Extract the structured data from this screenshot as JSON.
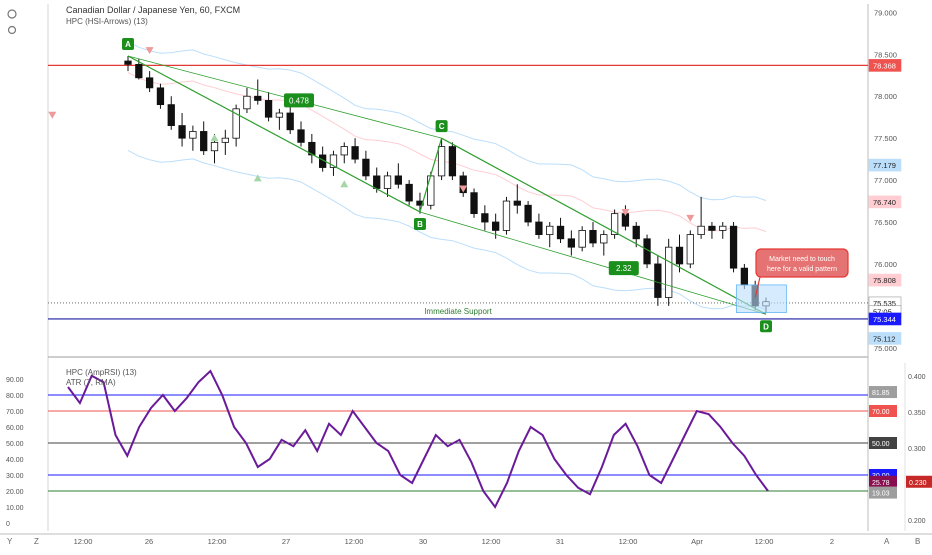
{
  "header": {
    "symbol_line": "Canadian Dollar / Japanese Yen, 60, FXCM",
    "indicator": "HPC (HSI-Arrows) (13)"
  },
  "left_toolbar": {
    "icons": [
      "settings-icon",
      "zoom-icon"
    ]
  },
  "bottom_bar": {
    "y_label": "Y",
    "z_label": "Z",
    "a_label": "A",
    "b_label": "B"
  },
  "chart_data": [
    {
      "type": "candlestick",
      "pane": "price",
      "ylim": [
        74.95,
        79.1
      ],
      "yticks": [
        "79.000",
        "78.500",
        "78.000",
        "77.500",
        "77.000",
        "76.500",
        "76.000",
        "75.500",
        "75.000"
      ],
      "xticks": [
        "12:00",
        "26",
        "12:00",
        "27",
        "12:00",
        "30",
        "12:00",
        "31",
        "12:00",
        "Apr",
        "12:00",
        "2"
      ],
      "price_tags": [
        {
          "value": "78.368",
          "price": 78.368,
          "color": "#ef5350"
        },
        {
          "value": "77.179",
          "price": 77.179,
          "color": "#bbdefb"
        },
        {
          "value": "76.740",
          "price": 76.74,
          "color": "#ffcdd2"
        },
        {
          "value": "75.808",
          "price": 75.808,
          "color": "#ffcdd2"
        },
        {
          "value": "75.535",
          "price": 75.535,
          "color": "#ffffff"
        },
        {
          "value": "57:05",
          "price": 75.43,
          "color": "#ffffff"
        },
        {
          "value": "75.344",
          "price": 75.344,
          "color": "#1a1aff"
        },
        {
          "value": "75.112",
          "price": 75.112,
          "color": "#bbdefb"
        }
      ],
      "horizontal_levels": [
        {
          "price": 78.368,
          "color": "#e53935",
          "label": ""
        },
        {
          "price": 75.344,
          "color": "#1a1aa0",
          "label": "Immediate Support"
        }
      ],
      "pattern_points": [
        {
          "label": "A",
          "x": 0,
          "y": 78.48
        },
        {
          "label": "B",
          "x": 27,
          "y": 76.62
        },
        {
          "label": "C",
          "x": 29,
          "y": 77.5
        },
        {
          "label": "D",
          "x": 59,
          "y": 75.4
        }
      ],
      "ratios": [
        "0.478",
        "2.32"
      ],
      "callout": "Market need to touch here for a valid pattern",
      "candles": [
        [
          78.42,
          78.48,
          78.3,
          78.38
        ],
        [
          78.38,
          78.45,
          78.2,
          78.22
        ],
        [
          78.22,
          78.3,
          78.05,
          78.1
        ],
        [
          78.1,
          78.15,
          77.85,
          77.9
        ],
        [
          77.9,
          78.0,
          77.6,
          77.65
        ],
        [
          77.65,
          77.8,
          77.4,
          77.5
        ],
        [
          77.5,
          77.65,
          77.35,
          77.58
        ],
        [
          77.58,
          77.7,
          77.3,
          77.35
        ],
        [
          77.35,
          77.55,
          77.2,
          77.45
        ],
        [
          77.45,
          77.6,
          77.3,
          77.5
        ],
        [
          77.5,
          77.9,
          77.4,
          77.85
        ],
        [
          77.85,
          78.1,
          77.8,
          78.0
        ],
        [
          78.0,
          78.2,
          77.9,
          77.95
        ],
        [
          77.95,
          78.05,
          77.7,
          77.75
        ],
        [
          77.75,
          77.85,
          77.6,
          77.8
        ],
        [
          77.8,
          77.9,
          77.55,
          77.6
        ],
        [
          77.6,
          77.7,
          77.4,
          77.45
        ],
        [
          77.45,
          77.55,
          77.2,
          77.3
        ],
        [
          77.3,
          77.4,
          77.1,
          77.15
        ],
        [
          77.15,
          77.35,
          77.05,
          77.3
        ],
        [
          77.3,
          77.45,
          77.2,
          77.4
        ],
        [
          77.4,
          77.5,
          77.2,
          77.25
        ],
        [
          77.25,
          77.35,
          77.0,
          77.05
        ],
        [
          77.05,
          77.15,
          76.85,
          76.9
        ],
        [
          76.9,
          77.1,
          76.8,
          77.05
        ],
        [
          77.05,
          77.2,
          76.9,
          76.95
        ],
        [
          76.95,
          77.0,
          76.7,
          76.75
        ],
        [
          76.75,
          76.85,
          76.6,
          76.7
        ],
        [
          76.7,
          77.1,
          76.65,
          77.05
        ],
        [
          77.05,
          77.5,
          77.0,
          77.4
        ],
        [
          77.4,
          77.45,
          77.0,
          77.05
        ],
        [
          77.05,
          77.1,
          76.8,
          76.85
        ],
        [
          76.85,
          76.9,
          76.55,
          76.6
        ],
        [
          76.6,
          76.7,
          76.4,
          76.5
        ],
        [
          76.5,
          76.6,
          76.3,
          76.4
        ],
        [
          76.4,
          76.8,
          76.35,
          76.75
        ],
        [
          76.75,
          76.95,
          76.6,
          76.7
        ],
        [
          76.7,
          76.75,
          76.45,
          76.5
        ],
        [
          76.5,
          76.6,
          76.3,
          76.35
        ],
        [
          76.35,
          76.5,
          76.2,
          76.45
        ],
        [
          76.45,
          76.55,
          76.25,
          76.3
        ],
        [
          76.3,
          76.4,
          76.1,
          76.2
        ],
        [
          76.2,
          76.45,
          76.15,
          76.4
        ],
        [
          76.4,
          76.5,
          76.2,
          76.25
        ],
        [
          76.25,
          76.4,
          76.1,
          76.35
        ],
        [
          76.35,
          76.65,
          76.3,
          76.6
        ],
        [
          76.6,
          76.7,
          76.4,
          76.45
        ],
        [
          76.45,
          76.5,
          76.2,
          76.3
        ],
        [
          76.3,
          76.35,
          75.95,
          76.0
        ],
        [
          76.0,
          76.1,
          75.5,
          75.6
        ],
        [
          75.6,
          76.3,
          75.5,
          76.2
        ],
        [
          76.2,
          76.35,
          75.9,
          76.0
        ],
        [
          76.0,
          76.4,
          75.95,
          76.35
        ],
        [
          76.35,
          76.8,
          76.3,
          76.45
        ],
        [
          76.45,
          76.5,
          76.3,
          76.4
        ],
        [
          76.4,
          76.5,
          76.3,
          76.45
        ],
        [
          76.45,
          76.5,
          75.9,
          75.95
        ],
        [
          75.95,
          76.0,
          75.7,
          75.75
        ],
        [
          75.75,
          75.8,
          75.45,
          75.5
        ],
        [
          75.5,
          75.6,
          75.42,
          75.55
        ]
      ]
    },
    {
      "type": "line",
      "pane": "oscillator",
      "title": "HPC (AmpRSI) (13)",
      "subtitle": "ATR (7, RMA)",
      "ylim": [
        -5,
        100
      ],
      "yticks": [
        "90.00",
        "80.00",
        "70.00",
        "60.00",
        "50.00",
        "40.00",
        "30.00",
        "20.00",
        "10.00",
        "0"
      ],
      "right_ticks": [
        "0.400",
        "0.350",
        "0.300",
        "0.250",
        "0.200"
      ],
      "tags": [
        {
          "value": "81.85",
          "level": 81.85,
          "color": "#9e9e9e"
        },
        {
          "value": "70.00",
          "level": 70,
          "color": "#ef5350"
        },
        {
          "value": "50.00",
          "level": 50,
          "color": "#424242"
        },
        {
          "value": "30.00",
          "level": 30,
          "color": "#1a1aff"
        },
        {
          "value": "25.78",
          "level": 25.78,
          "color": "#880e4f"
        },
        {
          "value": "0.230",
          "level": 25.78,
          "color": "#c62828",
          "side": "far"
        },
        {
          "value": "19.03",
          "level": 19.03,
          "color": "#9e9e9e"
        }
      ],
      "levels": [
        {
          "value": 80,
          "color": "#1a1aff"
        },
        {
          "value": 70,
          "color": "#ef5350"
        },
        {
          "value": 50,
          "color": "#424242"
        },
        {
          "value": 30,
          "color": "#1a1aff"
        },
        {
          "value": 20,
          "color": "#2e7d32"
        }
      ],
      "series": [
        {
          "values": [
            85,
            75,
            92,
            88,
            55,
            42,
            60,
            72,
            80,
            70,
            78,
            88,
            95,
            80,
            60,
            50,
            35,
            40,
            52,
            48,
            58,
            45,
            62,
            55,
            70,
            60,
            50,
            45,
            30,
            25,
            40,
            55,
            48,
            52,
            38,
            20,
            10,
            25,
            45,
            60,
            55,
            40,
            30,
            22,
            18,
            35,
            55,
            62,
            48,
            30,
            25,
            40,
            55,
            70,
            68,
            60,
            50,
            42,
            30,
            20
          ]
        }
      ]
    }
  ]
}
